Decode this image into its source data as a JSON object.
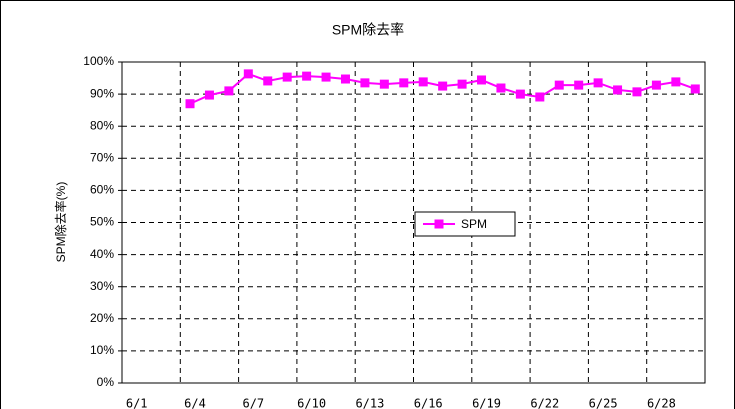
{
  "chart_data": {
    "type": "line",
    "title": "SPM除去率",
    "y_label": "SPM除去率(%)",
    "categories": [
      "6/1",
      null,
      null,
      "6/4",
      null,
      null,
      "6/7",
      null,
      null,
      "6/10",
      null,
      null,
      "6/13",
      null,
      null,
      "6/16",
      null,
      null,
      "6/19",
      null,
      null,
      "6/22",
      null,
      null,
      "6/25",
      null,
      null,
      "6/28",
      null,
      null
    ],
    "series": [
      {
        "name": "SPM",
        "color": "#ff00ff",
        "values": [
          null,
          null,
          null,
          87,
          89.7,
          91,
          96.3,
          94.1,
          95.3,
          95.6,
          95.3,
          94.7,
          93.5,
          93.1,
          93.5,
          93.8,
          92.5,
          93.1,
          94.4,
          91.9,
          90,
          89.1,
          92.8,
          92.8,
          93.5,
          91.3,
          90.7,
          92.8,
          93.8,
          91.6
        ]
      }
    ],
    "ylim": [
      0,
      100
    ],
    "yticks": [
      {
        "value": 0,
        "label": "0%"
      },
      {
        "value": 10,
        "label": "10%"
      },
      {
        "value": 20,
        "label": "20%"
      },
      {
        "value": 30,
        "label": "30%"
      },
      {
        "value": 40,
        "label": "40%"
      },
      {
        "value": 50,
        "label": "50%"
      },
      {
        "value": 60,
        "label": "60%"
      },
      {
        "value": 70,
        "label": "70%"
      },
      {
        "value": 80,
        "label": "80%"
      },
      {
        "value": 90,
        "label": "90%"
      },
      {
        "value": 100,
        "label": "100%"
      }
    ],
    "grid": true,
    "legend": "center"
  }
}
